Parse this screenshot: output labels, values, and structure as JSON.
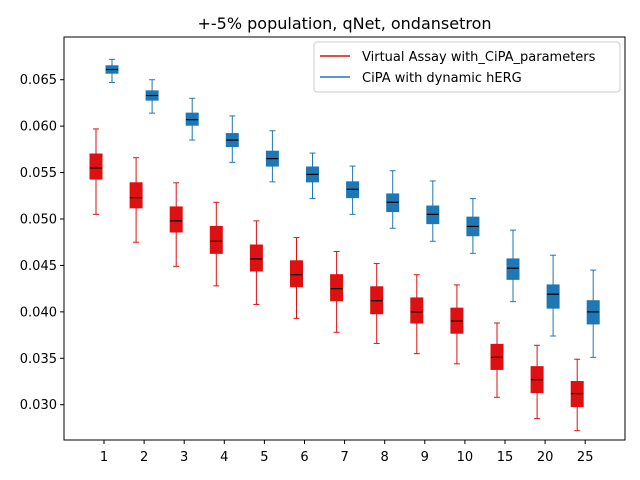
{
  "chart_data": {
    "type": "boxplot",
    "title": "+-5% population, qNet, ondansetron",
    "xlabel": "",
    "ylabel": "",
    "ylim": [
      0.0262,
      0.0696
    ],
    "yticks": [
      0.03,
      0.035,
      0.04,
      0.045,
      0.05,
      0.055,
      0.06,
      0.065
    ],
    "ytick_labels": [
      "0.030",
      "0.035",
      "0.040",
      "0.045",
      "0.050",
      "0.055",
      "0.060",
      "0.065"
    ],
    "categories": [
      "1",
      "2",
      "3",
      "4",
      "5",
      "6",
      "7",
      "8",
      "9",
      "10",
      "15",
      "20",
      "25"
    ],
    "legend_position": "top-right",
    "series": [
      {
        "name": "Virtual Assay with_CiPA_parameters",
        "color": "#dd1111",
        "boxes": [
          {
            "whislo": 0.0505,
            "q1": 0.0543,
            "med": 0.0555,
            "q3": 0.057,
            "whishi": 0.0597
          },
          {
            "whislo": 0.0475,
            "q1": 0.0512,
            "med": 0.0523,
            "q3": 0.0539,
            "whishi": 0.0566
          },
          {
            "whislo": 0.0449,
            "q1": 0.0486,
            "med": 0.0498,
            "q3": 0.0513,
            "whishi": 0.0539
          },
          {
            "whislo": 0.0428,
            "q1": 0.0463,
            "med": 0.0476,
            "q3": 0.0492,
            "whishi": 0.0518
          },
          {
            "whislo": 0.0408,
            "q1": 0.0444,
            "med": 0.0457,
            "q3": 0.0472,
            "whishi": 0.0498
          },
          {
            "whislo": 0.0393,
            "q1": 0.0427,
            "med": 0.044,
            "q3": 0.0455,
            "whishi": 0.048
          },
          {
            "whislo": 0.0378,
            "q1": 0.0412,
            "med": 0.0425,
            "q3": 0.044,
            "whishi": 0.0465
          },
          {
            "whislo": 0.0366,
            "q1": 0.0398,
            "med": 0.0412,
            "q3": 0.0427,
            "whishi": 0.0452
          },
          {
            "whislo": 0.0355,
            "q1": 0.0388,
            "med": 0.04,
            "q3": 0.0415,
            "whishi": 0.044
          },
          {
            "whislo": 0.0344,
            "q1": 0.0377,
            "med": 0.039,
            "q3": 0.0404,
            "whishi": 0.0429
          },
          {
            "whislo": 0.0308,
            "q1": 0.0338,
            "med": 0.0351,
            "q3": 0.0365,
            "whishi": 0.0388
          },
          {
            "whislo": 0.0285,
            "q1": 0.0313,
            "med": 0.0327,
            "q3": 0.0341,
            "whishi": 0.0364
          },
          {
            "whislo": 0.0272,
            "q1": 0.0298,
            "med": 0.0312,
            "q3": 0.0325,
            "whishi": 0.0349
          }
        ]
      },
      {
        "name": "CiPA with dynamic hERG",
        "color": "#1f77b4",
        "boxes": [
          {
            "whislo": 0.0647,
            "q1": 0.0657,
            "med": 0.0661,
            "q3": 0.0665,
            "whishi": 0.0672
          },
          {
            "whislo": 0.0614,
            "q1": 0.0628,
            "med": 0.0633,
            "q3": 0.0638,
            "whishi": 0.065
          },
          {
            "whislo": 0.0585,
            "q1": 0.0601,
            "med": 0.0607,
            "q3": 0.0614,
            "whishi": 0.063
          },
          {
            "whislo": 0.0561,
            "q1": 0.0578,
            "med": 0.0585,
            "q3": 0.0592,
            "whishi": 0.0611
          },
          {
            "whislo": 0.054,
            "q1": 0.0557,
            "med": 0.0565,
            "q3": 0.0573,
            "whishi": 0.0595
          },
          {
            "whislo": 0.0522,
            "q1": 0.054,
            "med": 0.0548,
            "q3": 0.0556,
            "whishi": 0.0571
          },
          {
            "whislo": 0.0505,
            "q1": 0.0523,
            "med": 0.0532,
            "q3": 0.054,
            "whishi": 0.0557
          },
          {
            "whislo": 0.049,
            "q1": 0.0508,
            "med": 0.0518,
            "q3": 0.0527,
            "whishi": 0.0552
          },
          {
            "whislo": 0.0476,
            "q1": 0.0495,
            "med": 0.0505,
            "q3": 0.0514,
            "whishi": 0.0541
          },
          {
            "whislo": 0.0463,
            "q1": 0.0482,
            "med": 0.0492,
            "q3": 0.0502,
            "whishi": 0.0522
          },
          {
            "whislo": 0.0411,
            "q1": 0.0435,
            "med": 0.0447,
            "q3": 0.0457,
            "whishi": 0.0488
          },
          {
            "whislo": 0.0374,
            "q1": 0.0404,
            "med": 0.0419,
            "q3": 0.0429,
            "whishi": 0.0461
          },
          {
            "whislo": 0.0351,
            "q1": 0.0387,
            "med": 0.04,
            "q3": 0.0412,
            "whishi": 0.0445
          }
        ]
      }
    ]
  }
}
